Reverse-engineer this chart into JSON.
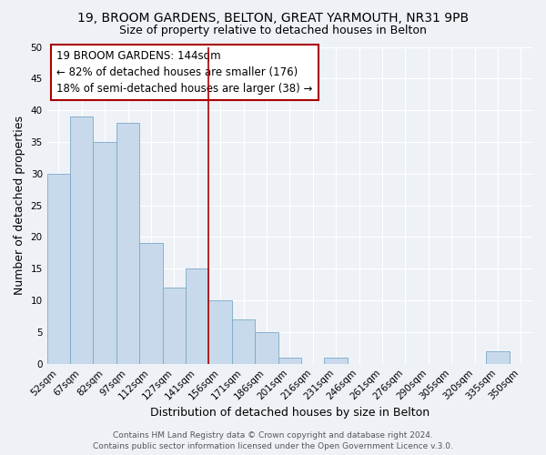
{
  "title": "19, BROOM GARDENS, BELTON, GREAT YARMOUTH, NR31 9PB",
  "subtitle": "Size of property relative to detached houses in Belton",
  "xlabel": "Distribution of detached houses by size in Belton",
  "ylabel": "Number of detached properties",
  "footer_lines": [
    "Contains HM Land Registry data © Crown copyright and database right 2024.",
    "Contains public sector information licensed under the Open Government Licence v.3.0."
  ],
  "bin_labels": [
    "52sqm",
    "67sqm",
    "82sqm",
    "97sqm",
    "112sqm",
    "127sqm",
    "141sqm",
    "156sqm",
    "171sqm",
    "186sqm",
    "201sqm",
    "216sqm",
    "231sqm",
    "246sqm",
    "261sqm",
    "276sqm",
    "290sqm",
    "305sqm",
    "320sqm",
    "335sqm",
    "350sqm"
  ],
  "bar_heights": [
    30,
    39,
    35,
    38,
    19,
    12,
    15,
    10,
    7,
    5,
    1,
    0,
    1,
    0,
    0,
    0,
    0,
    0,
    0,
    2,
    0
  ],
  "bar_color": "#c8d9eb",
  "bar_edge_color": "#7aaac8",
  "vline_x": 6.5,
  "vline_color": "#aa0000",
  "annotation_box_text": "19 BROOM GARDENS: 144sqm\n← 82% of detached houses are smaller (176)\n18% of semi-detached houses are larger (38) →",
  "ylim": [
    0,
    50
  ],
  "yticks": [
    0,
    5,
    10,
    15,
    20,
    25,
    30,
    35,
    40,
    45,
    50
  ],
  "bg_color": "#eef2f7",
  "plot_bg_color": "#eef2f7",
  "grid_color": "#ffffff",
  "title_fontsize": 10,
  "subtitle_fontsize": 9,
  "axis_label_fontsize": 9,
  "tick_fontsize": 7.5,
  "annotation_fontsize": 8.5,
  "footer_fontsize": 6.5
}
